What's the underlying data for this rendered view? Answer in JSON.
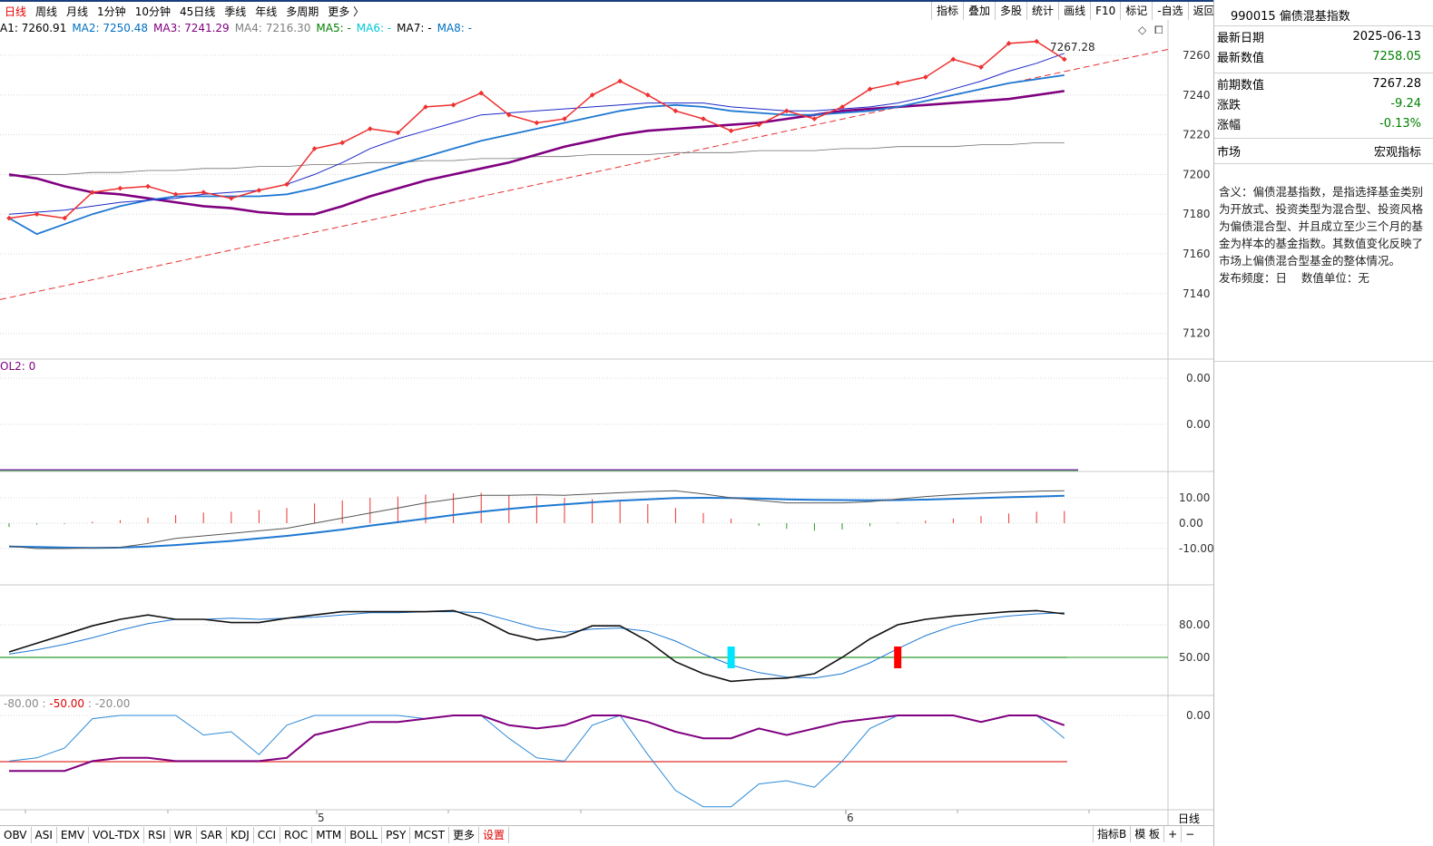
{
  "period_tabs": [
    "日线",
    "周线",
    "月线",
    "1分钟",
    "10分钟",
    "45日线",
    "季线",
    "年线",
    "多周期",
    "更多 〉"
  ],
  "active_period": "日线",
  "toolbar": [
    "指标",
    "叠加",
    "多股",
    "统计",
    "画线",
    "F10",
    "标记",
    "-自选",
    "返回"
  ],
  "ma_legend": [
    {
      "label": "A1: 7260.91",
      "color": "#000000"
    },
    {
      "label": "MA2: 7250.48",
      "color": "#0070c0"
    },
    {
      "label": "MA3: 7241.29",
      "color": "#800080"
    },
    {
      "label": "MA4: 7216.30",
      "color": "#808080"
    },
    {
      "label": "MA5: -",
      "color": "#008000"
    },
    {
      "label": "MA6: -",
      "color": "#00c8d8"
    },
    {
      "label": "MA7: -",
      "color": "#000000"
    },
    {
      "label": "MA8: -",
      "color": "#0070c0"
    }
  ],
  "main_ticks": [
    "7260",
    "7240",
    "7220",
    "7200",
    "7180",
    "7160",
    "7140",
    "7120"
  ],
  "last_label": "7267.28",
  "vol_label": "OL2: 0",
  "vol_ticks": [
    "0.00",
    "0.00"
  ],
  "macd_ticks": [
    "10.00",
    "0.00",
    "-10.00"
  ],
  "kdj_ticks": [
    "80.00",
    "50.00"
  ],
  "wr_legend": {
    "a": "-80.00",
    "b": "-50.00",
    "c": "-20.00"
  },
  "wr_ticks": [
    "0.00"
  ],
  "x_labels": [
    "5",
    "6"
  ],
  "axis_period": "日线",
  "indicator_tabs": [
    "OBV",
    "ASI",
    "EMV",
    "VOL-TDX",
    "RSI",
    "WR",
    "SAR",
    "KDJ",
    "CCI",
    "ROC",
    "MTM",
    "BOLL",
    "PSY",
    "MCST",
    "更多",
    "设置"
  ],
  "bottom_right": [
    "指标B",
    "模 板",
    "+",
    "−"
  ],
  "info": {
    "code": "990015",
    "name": "偏债混基指数",
    "rows": [
      {
        "label": "最新日期",
        "value": "2025-06-13",
        "color": "#000000"
      },
      {
        "label": "最新数值",
        "value": "7258.05",
        "color": "#008000"
      },
      {
        "label": "前期数值",
        "value": "7267.28",
        "color": "#000000"
      },
      {
        "label": "涨跌",
        "value": "-9.24",
        "color": "#008000"
      },
      {
        "label": "涨幅",
        "value": "-0.13%",
        "color": "#008000"
      },
      {
        "label": "市场",
        "value": "宏观指标",
        "color": "#000000"
      }
    ],
    "description": "含义：偏债混基指数，是指选择基金类别为开放式、投资类型为混合型、投资风格为偏债混合型、并且成立至少三个月的基金为样本的基金指数。其数值变化反映了市场上偏债混合型基金的整体情况。",
    "freq_label": "发布频度：日",
    "unit_label": "数值单位：无"
  },
  "series": {
    "index_values": [
      7178,
      7180,
      7178,
      7191,
      7193,
      7194,
      7190,
      7191,
      7188,
      7192,
      7195,
      7213,
      7216,
      7223,
      7221,
      7234,
      7235,
      7241,
      7230,
      7226,
      7228,
      7240,
      7247,
      7240,
      7232,
      7228,
      7222,
      7225,
      7232,
      7228,
      7234,
      7243,
      7246,
      7249,
      7258,
      7254,
      7266,
      7267,
      7258
    ],
    "ma_fast": [
      7180,
      7181,
      7182,
      7184,
      7186,
      7187,
      7188,
      7190,
      7191,
      7192,
      7195,
      7200,
      7206,
      7213,
      7218,
      7222,
      7226,
      7230,
      7231,
      7232,
      7233,
      7234,
      7235,
      7236,
      7236,
      7236,
      7234,
      7233,
      7232,
      7232,
      7233,
      7234,
      7236,
      7239,
      7243,
      7247,
      7252,
      7256,
      7261
    ],
    "ma_mid": [
      7178,
      7170,
      7175,
      7180,
      7184,
      7187,
      7189,
      7189,
      7189,
      7189,
      7190,
      7193,
      7197,
      7201,
      7205,
      7209,
      7213,
      7217,
      7220,
      7223,
      7226,
      7229,
      7232,
      7234,
      7235,
      7234,
      7232,
      7231,
      7230,
      7230,
      7231,
      7232,
      7234,
      7237,
      7240,
      7243,
      7246,
      7248,
      7250
    ],
    "ma_slow": [
      7200,
      7198,
      7194,
      7191,
      7190,
      7188,
      7186,
      7184,
      7183,
      7181,
      7180,
      7180,
      7184,
      7189,
      7193,
      7197,
      7200,
      7203,
      7206,
      7210,
      7214,
      7217,
      7220,
      7222,
      7223,
      7224,
      7225,
      7226,
      7228,
      7230,
      7232,
      7233,
      7234,
      7235,
      7236,
      7237,
      7238,
      7240,
      7242
    ],
    "ma_long": [
      7199,
      7200,
      7200,
      7201,
      7201,
      7202,
      7202,
      7203,
      7203,
      7204,
      7204,
      7205,
      7205,
      7206,
      7206,
      7207,
      7207,
      7208,
      7208,
      7209,
      7209,
      7210,
      7210,
      7210,
      7211,
      7211,
      7211,
      7212,
      7212,
      7212,
      7213,
      7213,
      7214,
      7214,
      7214,
      7215,
      7215,
      7216,
      7216
    ],
    "macd_hist": [
      -1.5,
      -0.5,
      -0.3,
      0.6,
      1.2,
      2.2,
      3.2,
      4.2,
      4.5,
      5.2,
      6,
      7.8,
      9,
      10,
      10.5,
      11.3,
      11.8,
      12,
      11,
      10.5,
      10,
      9.5,
      8.5,
      7.5,
      6,
      4,
      1.8,
      -1,
      -2.2,
      -3,
      -2.5,
      -1.2,
      0.2,
      1,
      1.8,
      2.8,
      3.8,
      4.5,
      4.8
    ],
    "macd_dif": [
      -9,
      -10,
      -10,
      -9.8,
      -9.5,
      -8,
      -6,
      -5,
      -4,
      -3,
      -2,
      0,
      2,
      4,
      6,
      8,
      9.5,
      11,
      11,
      11.2,
      11,
      11.5,
      12,
      12.5,
      12.8,
      11.5,
      10,
      9,
      8,
      8,
      8,
      8.5,
      9.5,
      10.5,
      11.2,
      11.8,
      12.2,
      12.6,
      12.8
    ],
    "macd_dea": [
      -9.2,
      -9.4,
      -9.6,
      -9.7,
      -9.6,
      -9.2,
      -8.6,
      -7.8,
      -7,
      -6,
      -5,
      -3.8,
      -2.5,
      -1,
      0.4,
      1.8,
      3.2,
      4.5,
      5.6,
      6.6,
      7.4,
      8.2,
      8.9,
      9.4,
      9.9,
      10,
      9.9,
      9.7,
      9.4,
      9.2,
      9.1,
      9,
      9.1,
      9.3,
      9.6,
      9.9,
      10.2,
      10.5,
      10.8
    ],
    "kdj_k": [
      55,
      63,
      71,
      79,
      85,
      89,
      85,
      85,
      82,
      82,
      86,
      89,
      92,
      92,
      92,
      92,
      93,
      85,
      72,
      66,
      69,
      79,
      79,
      65,
      46,
      35,
      28,
      30,
      31,
      35,
      50,
      67,
      80,
      85,
      88,
      90,
      92,
      93,
      90
    ],
    "kdj_d": [
      53,
      57,
      62,
      68,
      75,
      81,
      85,
      85,
      86,
      85,
      86,
      87,
      89,
      91,
      91,
      92,
      92,
      91,
      84,
      77,
      73,
      76,
      77,
      74,
      65,
      53,
      43,
      36,
      32,
      31,
      35,
      45,
      58,
      70,
      79,
      85,
      88,
      90,
      91
    ],
    "wr_1": [
      -14,
      -13,
      -10,
      -1,
      0,
      0,
      0,
      -6,
      -5,
      -12,
      -3,
      0,
      0,
      0,
      0,
      -1,
      0,
      0,
      -7,
      -13,
      -14,
      -3,
      0,
      -12,
      -23,
      -28,
      -28,
      -21,
      -20,
      -22,
      -14,
      -4,
      0,
      0,
      0,
      -2,
      0,
      0,
      -7
    ],
    "wr_2": [
      -17,
      -17,
      -17,
      -14,
      -13,
      -13,
      -14,
      -14,
      -14,
      -14,
      -13,
      -6,
      -4,
      -2,
      -2,
      -1,
      0,
      0,
      -3,
      -4,
      -3,
      0,
      0,
      -2,
      -5,
      -7,
      -7,
      -4,
      -6,
      -4,
      -2,
      -1,
      0,
      0,
      0,
      -2,
      0,
      0,
      -3
    ],
    "kdj_signals": [
      {
        "index": 26,
        "color": "#00e5ff"
      },
      {
        "index": 32,
        "color": "#ff0000"
      }
    ]
  }
}
